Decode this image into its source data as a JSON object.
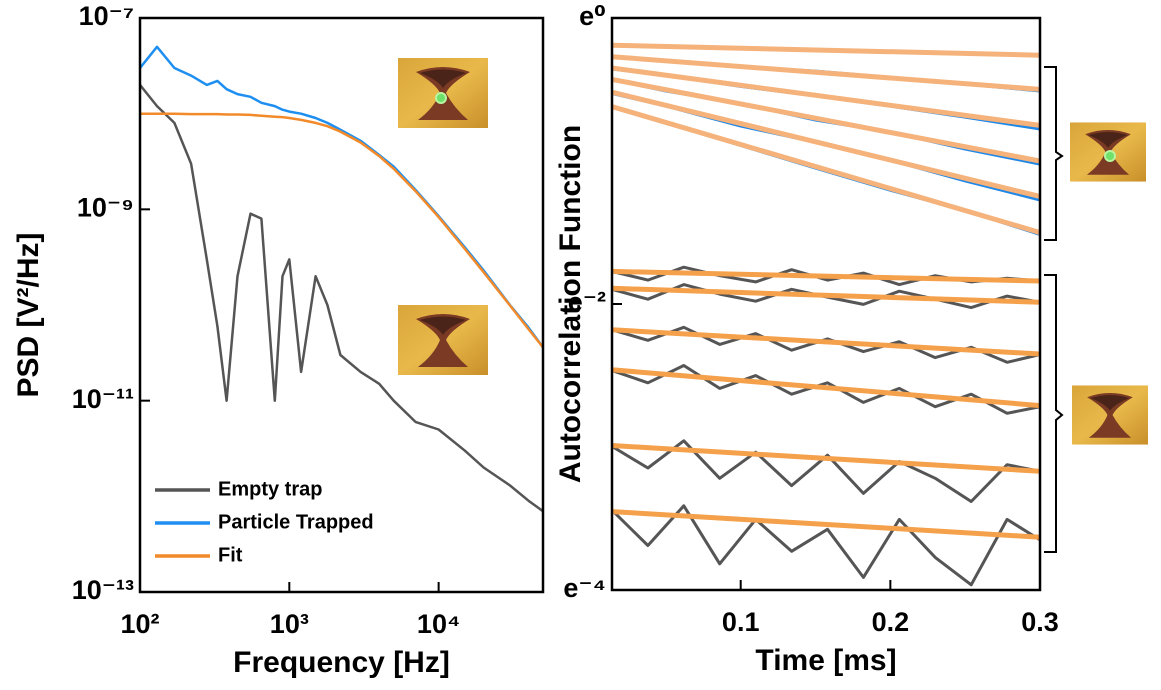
{
  "chart_data": [
    {
      "type": "line",
      "xscale": "log",
      "yscale": "log",
      "xlabel": "Frequency [Hz]",
      "ylabel": "PSD [V²/Hz]",
      "xlim": [
        100,
        50000
      ],
      "ylim": [
        1e-13,
        1e-07
      ],
      "xticks": [
        {
          "value": 100,
          "label": "10²"
        },
        {
          "value": 1000,
          "label": "10³"
        },
        {
          "value": 10000,
          "label": "10⁴"
        }
      ],
      "yticks": [
        {
          "value": 1e-13,
          "label": "10⁻¹³"
        },
        {
          "value": 1e-11,
          "label": "10⁻¹¹"
        },
        {
          "value": 1e-09,
          "label": "10⁻⁹"
        },
        {
          "value": 1e-07,
          "label": "10⁻⁷"
        }
      ],
      "legend": "lower left",
      "x": [
        100,
        130,
        170,
        220,
        280,
        330,
        380,
        450,
        550,
        650,
        800,
        900,
        1000,
        1200,
        1500,
        1800,
        2200,
        3000,
        4000,
        5000,
        7000,
        10000,
        15000,
        20000,
        30000,
        40000,
        50000
      ],
      "series": [
        {
          "name": "Empty trap",
          "color": "#555555",
          "values": [
            2e-08,
            1.2e-08,
            8e-09,
            3e-09,
            3e-10,
            6e-11,
            1e-11,
            2e-10,
            9e-10,
            8e-10,
            1e-11,
            2e-10,
            3e-10,
            2e-11,
            2e-10,
            1e-10,
            3e-11,
            2e-11,
            1.5e-11,
            1e-11,
            6e-12,
            5e-12,
            3e-12,
            2e-12,
            1.3e-12,
            9e-13,
            7e-13
          ]
        },
        {
          "name": "Particle Trapped",
          "color": "#1e8ff0",
          "values": [
            3e-08,
            5e-08,
            3e-08,
            2.5e-08,
            2e-08,
            2.2e-08,
            1.8e-08,
            1.6e-08,
            1.5e-08,
            1.3e-08,
            1.2e-08,
            1.1e-08,
            1.05e-08,
            1e-08,
            9e-09,
            8e-09,
            6.8e-09,
            5.2e-09,
            3.7e-09,
            2.8e-09,
            1.6e-09,
            8.5e-10,
            4e-10,
            2.3e-10,
            1e-10,
            5.8e-11,
            3.6e-11
          ]
        },
        {
          "name": "Fit",
          "color": "#f28a2a",
          "values": [
            1e-08,
            1e-08,
            1e-08,
            9.9e-09,
            9.9e-09,
            9.9e-09,
            9.8e-09,
            9.8e-09,
            9.7e-09,
            9.5e-09,
            9.3e-09,
            9.2e-09,
            9e-09,
            8.6e-09,
            8e-09,
            7.4e-09,
            6.5e-09,
            5e-09,
            3.6e-09,
            2.65e-09,
            1.55e-09,
            8.3e-10,
            3.85e-10,
            2.2e-10,
            9.9e-11,
            5.6e-11,
            3.6e-11
          ]
        }
      ]
    },
    {
      "type": "line",
      "yscale": "log",
      "xlabel": "Time [ms]",
      "ylabel": "Autocorrelation Function",
      "xlim": [
        0.014,
        0.3
      ],
      "ylim": [
        0.0183156,
        1
      ],
      "xticks": [
        0.1,
        0.2,
        0.3
      ],
      "yticks": [
        {
          "value": 0.0183156,
          "label": "e⁻⁴"
        },
        {
          "value": 0.1353353,
          "label": "e⁻²"
        },
        {
          "value": 1,
          "label": "e⁰"
        }
      ],
      "series": [
        {
          "color": "#1f87e8",
          "x": [
            0.014,
            0.05,
            0.1,
            0.15,
            0.2,
            0.25,
            0.3
          ],
          "values": [
            0.83,
            0.82,
            0.81,
            0.8,
            0.79,
            0.78,
            0.77
          ]
        },
        {
          "color": "#1f87e8",
          "x": [
            0.014,
            0.05,
            0.1,
            0.15,
            0.2,
            0.25,
            0.3
          ],
          "values": [
            0.76,
            0.74,
            0.71,
            0.69,
            0.66,
            0.63,
            0.6
          ]
        },
        {
          "color": "#1f87e8",
          "x": [
            0.014,
            0.05,
            0.1,
            0.15,
            0.2,
            0.25,
            0.3
          ],
          "values": [
            0.7,
            0.67,
            0.62,
            0.58,
            0.54,
            0.5,
            0.46
          ]
        },
        {
          "color": "#1f87e8",
          "x": [
            0.014,
            0.05,
            0.1,
            0.15,
            0.2,
            0.25,
            0.3
          ],
          "values": [
            0.65,
            0.6,
            0.55,
            0.49,
            0.45,
            0.4,
            0.36
          ]
        },
        {
          "color": "#1f87e8",
          "x": [
            0.014,
            0.05,
            0.1,
            0.15,
            0.2,
            0.25,
            0.3
          ],
          "values": [
            0.59,
            0.54,
            0.47,
            0.42,
            0.37,
            0.32,
            0.28
          ]
        },
        {
          "color": "#1f87e8",
          "x": [
            0.014,
            0.05,
            0.1,
            0.15,
            0.2,
            0.25,
            0.3
          ],
          "values": [
            0.54,
            0.48,
            0.41,
            0.35,
            0.3,
            0.26,
            0.22
          ]
        },
        {
          "color": "#555555",
          "x": [
            0.014,
            0.038,
            0.062,
            0.086,
            0.11,
            0.134,
            0.158,
            0.182,
            0.206,
            0.23,
            0.254,
            0.278,
            0.3
          ],
          "values": [
            0.17,
            0.16,
            0.175,
            0.165,
            0.158,
            0.172,
            0.16,
            0.168,
            0.155,
            0.165,
            0.158,
            0.162,
            0.159
          ]
        },
        {
          "color": "#555555",
          "x": [
            0.014,
            0.038,
            0.062,
            0.086,
            0.11,
            0.134,
            0.158,
            0.182,
            0.206,
            0.23,
            0.254,
            0.278,
            0.3
          ],
          "values": [
            0.15,
            0.14,
            0.155,
            0.145,
            0.138,
            0.15,
            0.142,
            0.135,
            0.148,
            0.14,
            0.132,
            0.143,
            0.137
          ]
        },
        {
          "color": "#555555",
          "x": [
            0.014,
            0.038,
            0.062,
            0.086,
            0.11,
            0.134,
            0.158,
            0.182,
            0.206,
            0.23,
            0.254,
            0.278,
            0.3
          ],
          "values": [
            0.113,
            0.105,
            0.115,
            0.102,
            0.11,
            0.098,
            0.106,
            0.097,
            0.104,
            0.093,
            0.1,
            0.09,
            0.095
          ]
        },
        {
          "color": "#555555",
          "x": [
            0.014,
            0.038,
            0.062,
            0.086,
            0.11,
            0.134,
            0.158,
            0.182,
            0.206,
            0.23,
            0.254,
            0.278,
            0.3
          ],
          "values": [
            0.085,
            0.078,
            0.088,
            0.075,
            0.082,
            0.072,
            0.078,
            0.068,
            0.075,
            0.066,
            0.072,
            0.063,
            0.066
          ]
        },
        {
          "color": "#555555",
          "x": [
            0.014,
            0.038,
            0.062,
            0.086,
            0.11,
            0.134,
            0.158,
            0.182,
            0.206,
            0.23,
            0.254,
            0.278,
            0.3
          ],
          "values": [
            0.05,
            0.043,
            0.052,
            0.04,
            0.048,
            0.038,
            0.047,
            0.036,
            0.045,
            0.04,
            0.034,
            0.044,
            0.042
          ]
        },
        {
          "color": "#555555",
          "x": [
            0.014,
            0.038,
            0.062,
            0.086,
            0.11,
            0.134,
            0.158,
            0.182,
            0.206,
            0.23,
            0.254,
            0.278,
            0.3
          ],
          "values": [
            0.032,
            0.025,
            0.033,
            0.022,
            0.03,
            0.024,
            0.028,
            0.02,
            0.03,
            0.023,
            0.019,
            0.03,
            0.026
          ]
        },
        {
          "color": "#f5b27a",
          "x": [
            0.014,
            0.3
          ],
          "values": [
            0.827,
            0.771
          ]
        },
        {
          "color": "#f5b27a",
          "x": [
            0.014,
            0.3
          ],
          "values": [
            0.763,
            0.607
          ]
        },
        {
          "color": "#f5b27a",
          "x": [
            0.014,
            0.3
          ],
          "values": [
            0.705,
            0.472
          ]
        },
        {
          "color": "#f5b27a",
          "x": [
            0.014,
            0.3
          ],
          "values": [
            0.651,
            0.368
          ]
        },
        {
          "color": "#f5b27a",
          "x": [
            0.014,
            0.3
          ],
          "values": [
            0.595,
            0.287
          ]
        },
        {
          "color": "#f5b27a",
          "x": [
            0.014,
            0.3
          ],
          "values": [
            0.538,
            0.223
          ]
        },
        {
          "color": "#f5a04a",
          "x": [
            0.014,
            0.3
          ],
          "values": [
            0.17,
            0.159
          ]
        },
        {
          "color": "#f5a04a",
          "x": [
            0.014,
            0.3
          ],
          "values": [
            0.151,
            0.137
          ]
        },
        {
          "color": "#f5a04a",
          "x": [
            0.014,
            0.3
          ],
          "values": [
            0.113,
            0.0954
          ]
        },
        {
          "color": "#f5a04a",
          "x": [
            0.014,
            0.3
          ],
          "values": [
            0.0854,
            0.0665
          ]
        },
        {
          "color": "#f5a04a",
          "x": [
            0.014,
            0.3
          ],
          "values": [
            0.0503,
            0.042
          ]
        },
        {
          "color": "#f5a04a",
          "x": [
            0.014,
            0.3
          ],
          "values": [
            0.0317,
            0.0265
          ]
        }
      ]
    }
  ]
}
